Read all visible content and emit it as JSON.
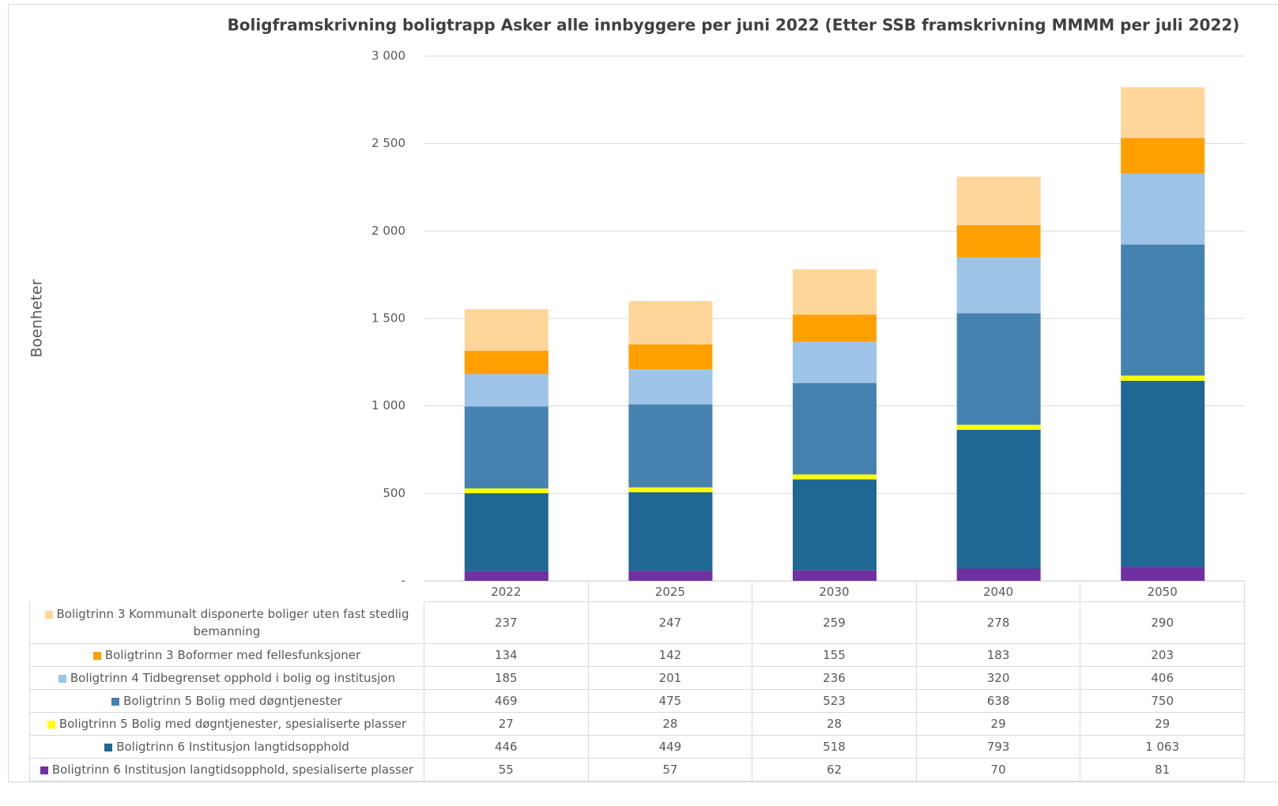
{
  "chart_data": {
    "type": "stacked_bar",
    "title": "Boligframskrivning boligtrapp Asker alle innbyggere per juni 2022 (Etter SSB framskrivning MMMM per juli 2022)",
    "y_label": "Boenheter",
    "categories": [
      "2022",
      "2025",
      "2030",
      "2040",
      "2050"
    ],
    "series": [
      {
        "name": "Boligtrinn 3 Kommunalt disponerte boliger uten fast stedlig bemanning",
        "color": "#ffd699",
        "values": [
          237,
          247,
          259,
          278,
          290
        ]
      },
      {
        "name": "Boligtrinn 3 Boformer med fellesfunksjoner",
        "color": "#ffa000",
        "values": [
          134,
          142,
          155,
          183,
          203
        ]
      },
      {
        "name": "Boligtrinn 4 Tidbegrenset opphold i bolig og institusjon",
        "color": "#9dc3e6",
        "values": [
          185,
          201,
          236,
          320,
          406
        ]
      },
      {
        "name": "Boligtrinn 5 Bolig med døgntjenester",
        "color": "#4682b0",
        "values": [
          469,
          475,
          523,
          638,
          750
        ]
      },
      {
        "name": "Boligtrinn 5 Bolig med døgntjenester, spesialiserte plasser",
        "color": "#ffff00",
        "values": [
          27,
          28,
          28,
          29,
          29
        ]
      },
      {
        "name": "Boligtrinn 6 Institusjon langtidsopphold",
        "color": "#1f6894",
        "values": [
          446,
          449,
          518,
          793,
          1063
        ],
        "value_labels": [
          "446",
          "449",
          "518",
          "793",
          "1 063"
        ]
      },
      {
        "name": "Boligtrinn 6 Institusjon langtidsopphold, spesialiserte plasser",
        "color": "#7030a0",
        "values": [
          55,
          57,
          62,
          70,
          81
        ]
      }
    ],
    "ylim": [
      0,
      3000
    ],
    "yticks": [
      {
        "value": 0,
        "label": "-"
      },
      500,
      {
        "value": 1000,
        "label": "1 000"
      },
      {
        "value": 1500,
        "label": "1 500"
      },
      {
        "value": 2000,
        "label": "2 000"
      },
      {
        "value": 2500,
        "label": "2 500"
      },
      {
        "value": 3000,
        "label": "3 000"
      }
    ],
    "grid": true
  }
}
